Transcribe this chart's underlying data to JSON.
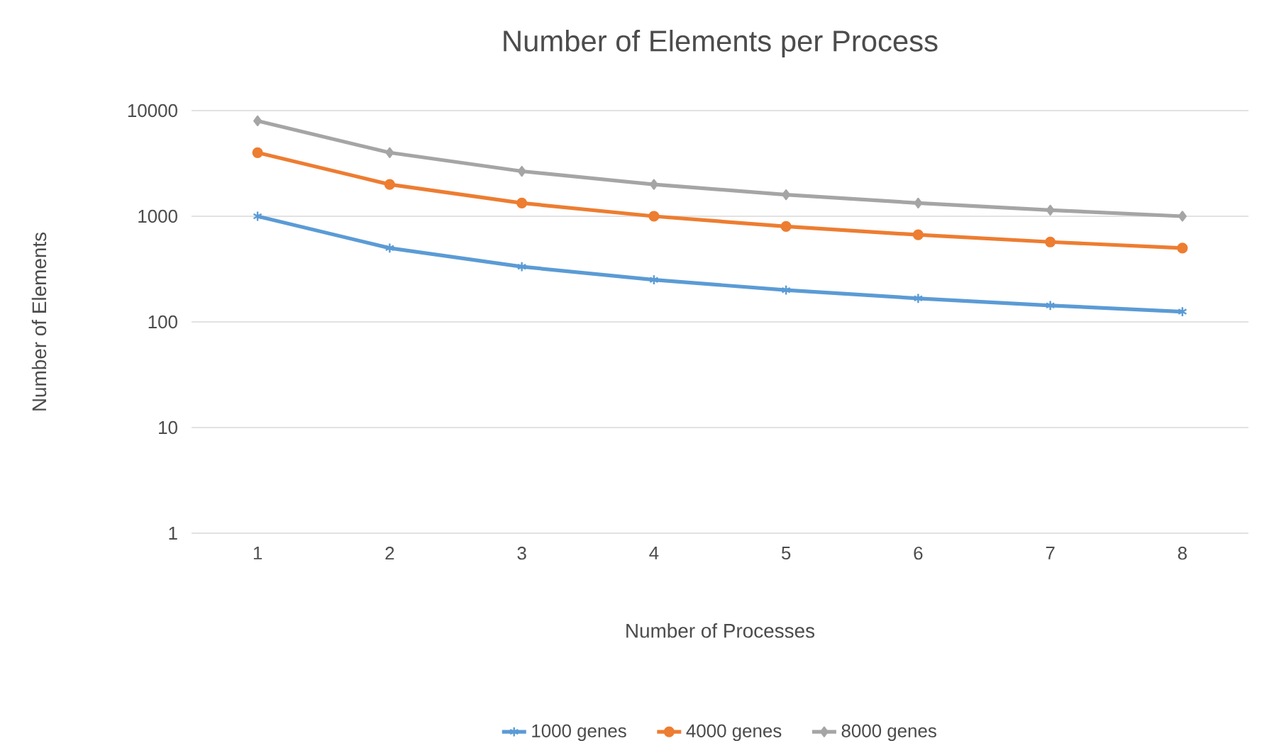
{
  "chart_data": {
    "type": "line",
    "title": "Number of Elements  per Process",
    "xlabel": "Number  of Processes",
    "ylabel": "Number  of Elements",
    "categories": [
      "1",
      "2",
      "3",
      "4",
      "5",
      "6",
      "7",
      "8"
    ],
    "series": [
      {
        "name": "1000 genes",
        "color": "#5b9bd5",
        "marker": "cross",
        "values": [
          1000,
          500,
          333,
          250,
          200,
          167,
          143,
          125
        ]
      },
      {
        "name": "4000 genes",
        "color": "#ed7d31",
        "marker": "circle",
        "values": [
          4000,
          2000,
          1333,
          1000,
          800,
          667,
          571,
          500
        ]
      },
      {
        "name": "8000 genes",
        "color": "#a5a5a5",
        "marker": "diamond",
        "values": [
          8000,
          4000,
          2667,
          2000,
          1600,
          1333,
          1143,
          1000
        ]
      }
    ],
    "log": "y",
    "ylim": [
      1,
      10000
    ],
    "yticks": [
      1,
      10,
      100,
      1000,
      10000
    ],
    "grid": "y",
    "legend": "bottom",
    "line_style": "solid"
  }
}
